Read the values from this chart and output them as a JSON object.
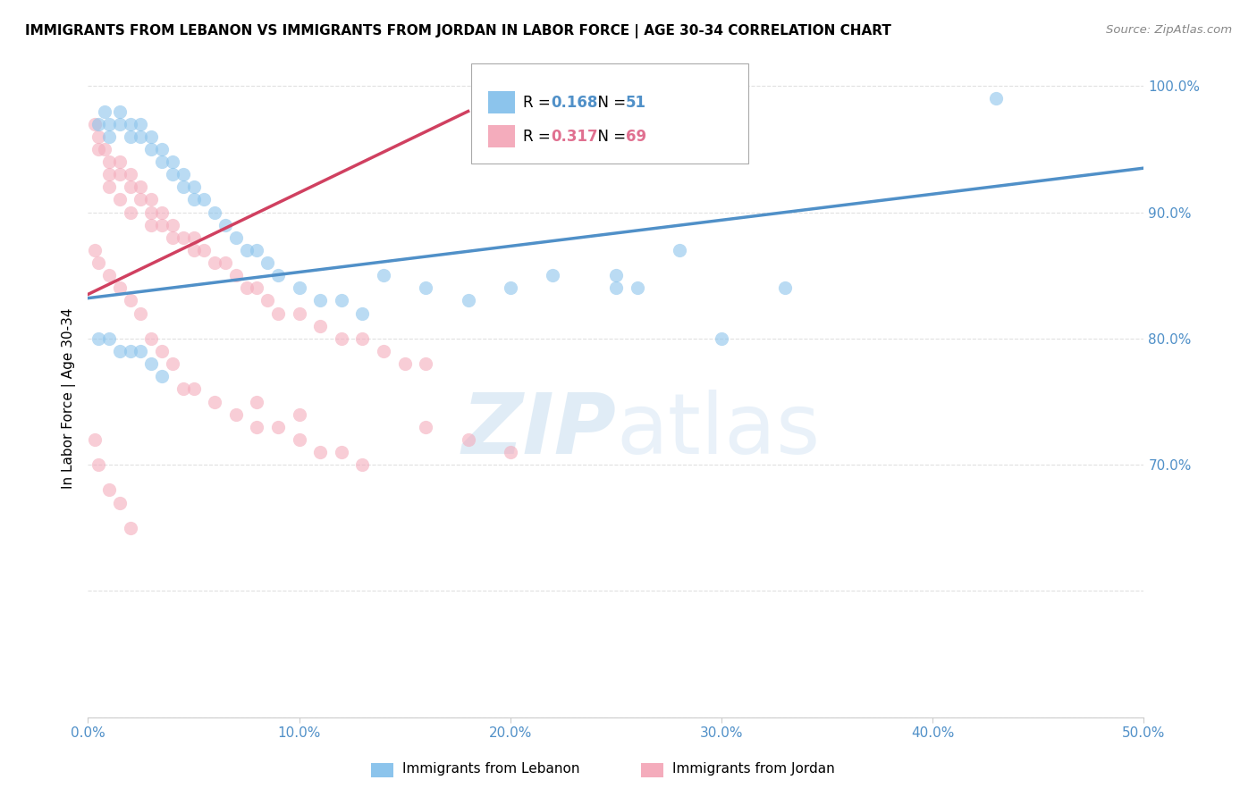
{
  "title": "IMMIGRANTS FROM LEBANON VS IMMIGRANTS FROM JORDAN IN LABOR FORCE | AGE 30-34 CORRELATION CHART",
  "source": "Source: ZipAtlas.com",
  "ylabel_label": "In Labor Force | Age 30-34",
  "xmin": 0.0,
  "xmax": 0.5,
  "ymin": 0.5,
  "ymax": 1.005,
  "lebanon_color": "#8CC4EC",
  "jordan_color": "#F4ACBC",
  "trend_lebanon_color": "#5090C8",
  "trend_jordan_color": "#D04060",
  "legend_r_lebanon": "0.168",
  "legend_n_lebanon": "51",
  "legend_r_jordan": "0.317",
  "legend_n_jordan": "69",
  "r_color_lebanon": "#5090C8",
  "r_color_jordan": "#E07090",
  "watermark_zip": "ZIP",
  "watermark_atlas": "atlas",
  "bg_color": "#FFFFFF",
  "grid_color": "#DDDDDD",
  "tick_color": "#5090C8",
  "lebanon_scatter_x": [
    0.005,
    0.008,
    0.01,
    0.01,
    0.015,
    0.015,
    0.02,
    0.02,
    0.025,
    0.025,
    0.03,
    0.03,
    0.035,
    0.035,
    0.04,
    0.04,
    0.045,
    0.045,
    0.05,
    0.05,
    0.055,
    0.06,
    0.065,
    0.07,
    0.075,
    0.08,
    0.085,
    0.09,
    0.1,
    0.11,
    0.12,
    0.13,
    0.14,
    0.16,
    0.18,
    0.2,
    0.22,
    0.25,
    0.28,
    0.3,
    0.005,
    0.01,
    0.015,
    0.02,
    0.025,
    0.03,
    0.035,
    0.25,
    0.26,
    0.33,
    0.43
  ],
  "lebanon_scatter_y": [
    0.97,
    0.98,
    0.97,
    0.96,
    0.98,
    0.97,
    0.97,
    0.96,
    0.97,
    0.96,
    0.96,
    0.95,
    0.95,
    0.94,
    0.94,
    0.93,
    0.93,
    0.92,
    0.92,
    0.91,
    0.91,
    0.9,
    0.89,
    0.88,
    0.87,
    0.87,
    0.86,
    0.85,
    0.84,
    0.83,
    0.83,
    0.82,
    0.85,
    0.84,
    0.83,
    0.84,
    0.85,
    0.84,
    0.87,
    0.8,
    0.8,
    0.8,
    0.79,
    0.79,
    0.79,
    0.78,
    0.77,
    0.85,
    0.84,
    0.84,
    0.99
  ],
  "jordan_scatter_x": [
    0.003,
    0.005,
    0.005,
    0.008,
    0.01,
    0.01,
    0.01,
    0.015,
    0.015,
    0.015,
    0.02,
    0.02,
    0.02,
    0.025,
    0.025,
    0.03,
    0.03,
    0.03,
    0.035,
    0.035,
    0.04,
    0.04,
    0.045,
    0.05,
    0.05,
    0.055,
    0.06,
    0.065,
    0.07,
    0.075,
    0.08,
    0.085,
    0.09,
    0.1,
    0.11,
    0.12,
    0.13,
    0.14,
    0.15,
    0.16,
    0.003,
    0.005,
    0.01,
    0.015,
    0.02,
    0.025,
    0.03,
    0.035,
    0.04,
    0.045,
    0.05,
    0.06,
    0.07,
    0.08,
    0.09,
    0.1,
    0.11,
    0.12,
    0.13,
    0.003,
    0.005,
    0.01,
    0.015,
    0.02,
    0.08,
    0.1,
    0.16,
    0.18,
    0.2
  ],
  "jordan_scatter_y": [
    0.97,
    0.96,
    0.95,
    0.95,
    0.94,
    0.93,
    0.92,
    0.94,
    0.93,
    0.91,
    0.93,
    0.92,
    0.9,
    0.92,
    0.91,
    0.91,
    0.9,
    0.89,
    0.9,
    0.89,
    0.89,
    0.88,
    0.88,
    0.88,
    0.87,
    0.87,
    0.86,
    0.86,
    0.85,
    0.84,
    0.84,
    0.83,
    0.82,
    0.82,
    0.81,
    0.8,
    0.8,
    0.79,
    0.78,
    0.78,
    0.87,
    0.86,
    0.85,
    0.84,
    0.83,
    0.82,
    0.8,
    0.79,
    0.78,
    0.76,
    0.76,
    0.75,
    0.74,
    0.73,
    0.73,
    0.72,
    0.71,
    0.71,
    0.7,
    0.72,
    0.7,
    0.68,
    0.67,
    0.65,
    0.75,
    0.74,
    0.73,
    0.72,
    0.71
  ]
}
